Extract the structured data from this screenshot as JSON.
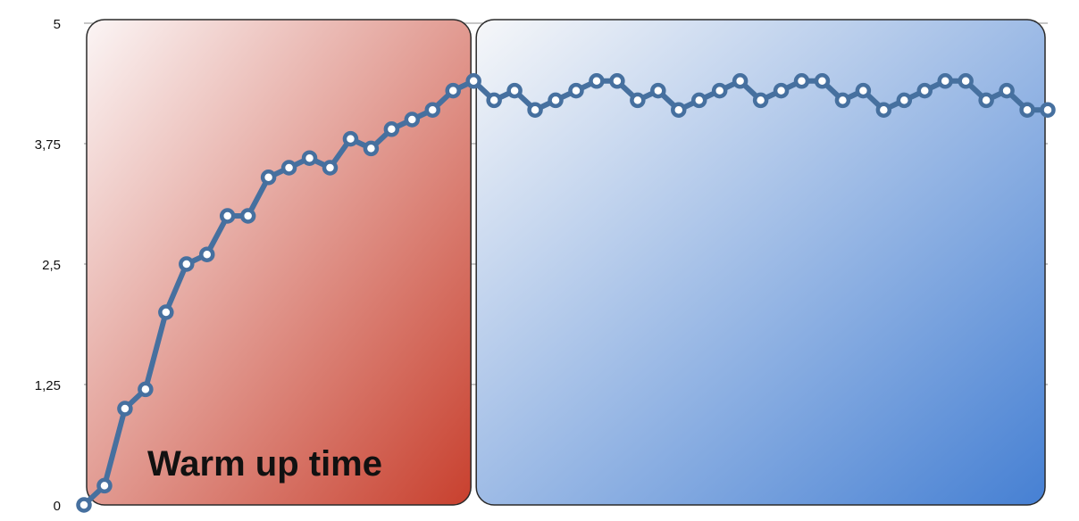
{
  "chart_data": {
    "type": "line",
    "title": "",
    "xlabel": "",
    "ylabel": "",
    "ylim": [
      0,
      5
    ],
    "yticks": [
      0,
      1.25,
      2.5,
      3.75,
      5
    ],
    "ytick_labels": [
      "0",
      "1,25",
      "2,5",
      "3,75",
      "5"
    ],
    "grid": true,
    "series_color": "#46709f",
    "regions": [
      {
        "label": "Warm up time",
        "x_range": [
          0,
          19
        ],
        "color_light": "#fbf5f5",
        "color_dark": "#c8402e"
      },
      {
        "label": "",
        "x_range": [
          19,
          47
        ],
        "color_light": "#f6f7f9",
        "color_dark": "#4680d3"
      }
    ],
    "x": [
      0,
      1,
      2,
      3,
      4,
      5,
      6,
      7,
      8,
      9,
      10,
      11,
      12,
      13,
      14,
      15,
      16,
      17,
      18,
      19,
      20,
      21,
      22,
      23,
      24,
      25,
      26,
      27,
      28,
      29,
      30,
      31,
      32,
      33,
      34,
      35,
      36,
      37,
      38,
      39,
      40,
      41,
      42,
      43,
      44,
      45,
      46,
      47
    ],
    "values": [
      0,
      0.2,
      1.0,
      1.2,
      2.0,
      2.5,
      2.6,
      3.0,
      3.0,
      3.4,
      3.5,
      3.6,
      3.5,
      3.8,
      3.7,
      3.9,
      4.0,
      4.1,
      4.3,
      4.4,
      4.2,
      4.3,
      4.1,
      4.2,
      4.3,
      4.4,
      4.4,
      4.2,
      4.3,
      4.1,
      4.2,
      4.3,
      4.4,
      4.2,
      4.3,
      4.4,
      4.4,
      4.2,
      4.3,
      4.1,
      4.2,
      4.3,
      4.4,
      4.4,
      4.2,
      4.3,
      4.1,
      4.1
    ]
  }
}
